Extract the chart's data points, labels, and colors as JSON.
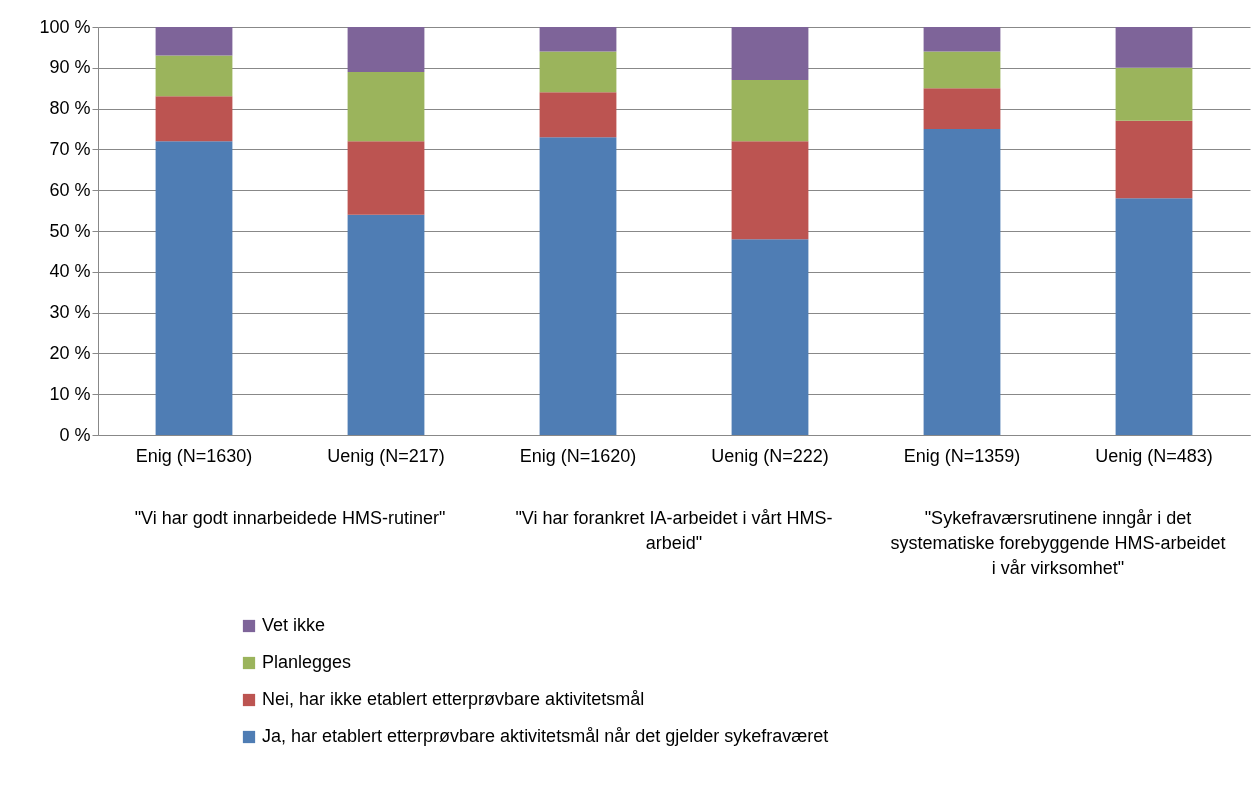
{
  "chart_data": {
    "type": "bar",
    "stacked": true,
    "categories": [
      "Enig (N=1630)",
      "Uenig (N=217)",
      "Enig (N=1620)",
      "Uenig (N=222)",
      "Enig (N=1359)",
      "Uenig (N=483)"
    ],
    "series": [
      {
        "name": "Ja, har etablert etterprøvbare aktivitetsmål når det gjelder sykefraværet",
        "color": "#4f7db4",
        "values": [
          72,
          54,
          73,
          48,
          75,
          58
        ]
      },
      {
        "name": "Nei, har ikke etablert etterprøvbare aktivitetsmål",
        "color": "#bc5451",
        "values": [
          11,
          18,
          11,
          24,
          10,
          19
        ]
      },
      {
        "name": "Planlegges",
        "color": "#9bb45c",
        "values": [
          10,
          17,
          10,
          15,
          9,
          13
        ]
      },
      {
        "name": "Vet ikke",
        "color": "#7e6499",
        "values": [
          7,
          11,
          6,
          13,
          6,
          10
        ]
      }
    ],
    "ylim": [
      0,
      100
    ],
    "yticks": [
      {
        "value": 0,
        "label": "0 %"
      },
      {
        "value": 10,
        "label": "10 %"
      },
      {
        "value": 20,
        "label": "20 %"
      },
      {
        "value": 30,
        "label": "30 %"
      },
      {
        "value": 40,
        "label": "40 %"
      },
      {
        "value": 50,
        "label": "50 %"
      },
      {
        "value": 60,
        "label": "60 %"
      },
      {
        "value": 70,
        "label": "70 %"
      },
      {
        "value": 80,
        "label": "80 %"
      },
      {
        "value": 90,
        "label": "90 %"
      },
      {
        "value": 100,
        "label": "100 %"
      }
    ],
    "grid": "y",
    "legend": "bottom",
    "annotations": [
      "\"Vi har godt innarbeidede HMS-rutiner\"",
      "\"Vi har forankret IA-arbeidet i vårt HMS-arbeid\"",
      "\"Sykefraværsrutinene inngår i det systematiske forebyggende HMS-arbeidet i vår virksomhet\""
    ]
  }
}
